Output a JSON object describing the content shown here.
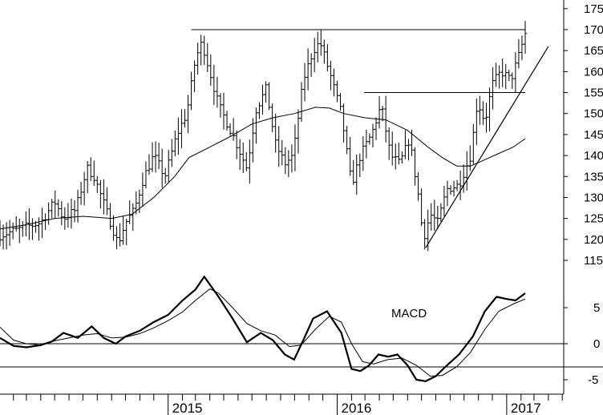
{
  "chart_data": [
    {
      "type": "ohlc",
      "panel": "price",
      "ylim": [
        110,
        178
      ],
      "yticks": [
        115,
        120,
        125,
        130,
        135,
        140,
        145,
        150,
        155,
        160,
        165,
        170,
        175
      ],
      "x_start": "2014-01-03",
      "x_end": "2017-02-10",
      "date_labels": [
        {
          "label": "2015",
          "date": "2015-01-01"
        },
        {
          "label": "2016",
          "date": "2016-01-01"
        },
        {
          "label": "2017",
          "date": "2017-01-01"
        }
      ],
      "moving_average": [
        [
          "2014-01-03",
          122.5
        ],
        [
          "2014-03-01",
          123.5
        ],
        [
          "2014-05-01",
          125.0
        ],
        [
          "2014-07-01",
          125.5
        ],
        [
          "2014-09-01",
          125.0
        ],
        [
          "2014-10-15",
          126.0
        ],
        [
          "2014-12-01",
          130.0
        ],
        [
          "2015-01-15",
          135.0
        ],
        [
          "2015-02-15",
          139.5
        ],
        [
          "2015-04-01",
          142.0
        ],
        [
          "2015-05-15",
          144.5
        ],
        [
          "2015-07-01",
          147.5
        ],
        [
          "2015-08-15",
          149.0
        ],
        [
          "2015-10-01",
          150.0
        ],
        [
          "2015-11-15",
          151.5
        ],
        [
          "2015-12-15",
          151.3
        ],
        [
          "2016-01-15",
          150.0
        ],
        [
          "2016-03-01",
          149.0
        ],
        [
          "2016-04-15",
          148.5
        ],
        [
          "2016-06-01",
          146.0
        ],
        [
          "2016-07-15",
          142.0
        ],
        [
          "2016-08-15",
          139.5
        ],
        [
          "2016-09-15",
          137.5
        ],
        [
          "2016-10-15",
          137.5
        ],
        [
          "2016-11-15",
          139.0
        ],
        [
          "2016-12-15",
          140.5
        ],
        [
          "2017-01-15",
          142.0
        ],
        [
          "2017-02-10",
          144.0
        ]
      ],
      "close_path": [
        [
          "2014-01-03",
          121.0
        ],
        [
          "2014-02-01",
          122.0
        ],
        [
          "2014-03-01",
          123.0
        ],
        [
          "2014-04-01",
          124.0
        ],
        [
          "2014-05-01",
          129.0
        ],
        [
          "2014-05-20",
          125.0
        ],
        [
          "2014-06-15",
          127.0
        ],
        [
          "2014-07-10",
          137.0
        ],
        [
          "2014-07-25",
          135.0
        ],
        [
          "2014-08-20",
          127.0
        ],
        [
          "2014-09-15",
          119.0
        ],
        [
          "2014-10-01",
          124.0
        ],
        [
          "2014-10-20",
          127.0
        ],
        [
          "2014-11-10",
          135.0
        ],
        [
          "2014-12-01",
          140.0
        ],
        [
          "2014-12-25",
          135.0
        ],
        [
          "2015-01-20",
          145.0
        ],
        [
          "2015-02-10",
          150.0
        ],
        [
          "2015-03-01",
          163.0
        ],
        [
          "2015-03-15",
          167.0
        ],
        [
          "2015-04-01",
          160.0
        ],
        [
          "2015-04-20",
          152.0
        ],
        [
          "2015-05-20",
          145.0
        ],
        [
          "2015-06-20",
          137.0
        ],
        [
          "2015-07-10",
          151.0
        ],
        [
          "2015-08-01",
          156.0
        ],
        [
          "2015-08-20",
          143.0
        ],
        [
          "2015-09-10",
          138.0
        ],
        [
          "2015-09-28",
          140.0
        ],
        [
          "2015-10-20",
          158.0
        ],
        [
          "2015-11-10",
          165.0
        ],
        [
          "2015-11-25",
          167.0
        ],
        [
          "2015-12-15",
          160.0
        ],
        [
          "2016-01-10",
          150.0
        ],
        [
          "2016-02-01",
          133.0
        ],
        [
          "2016-02-20",
          140.0
        ],
        [
          "2016-03-15",
          145.0
        ],
        [
          "2016-04-05",
          152.0
        ],
        [
          "2016-04-25",
          140.0
        ],
        [
          "2016-05-15",
          138.0
        ],
        [
          "2016-06-05",
          144.0
        ],
        [
          "2016-06-25",
          130.0
        ],
        [
          "2016-07-05",
          120.0
        ],
        [
          "2016-07-20",
          126.0
        ],
        [
          "2016-08-05",
          124.0
        ],
        [
          "2016-08-25",
          132.0
        ],
        [
          "2016-09-20",
          133.0
        ],
        [
          "2016-10-15",
          140.0
        ],
        [
          "2016-10-30",
          153.0
        ],
        [
          "2016-11-15",
          148.0
        ],
        [
          "2016-12-01",
          157.0
        ],
        [
          "2016-12-20",
          160.0
        ],
        [
          "2017-01-10",
          158.0
        ],
        [
          "2017-01-25",
          163.0
        ],
        [
          "2017-02-10",
          169.0
        ]
      ],
      "horizontal_lines": [
        {
          "y": 170,
          "x0": "2015-02-20",
          "x1": "2017-02-10"
        },
        {
          "y": 155,
          "x0": "2016-02-28",
          "x1": "2017-02-10"
        }
      ],
      "trendline": {
        "x0": "2016-07-10",
        "y0": 118.0,
        "x1": "2017-04-01",
        "y1": 166.0
      }
    },
    {
      "type": "line",
      "panel": "indicator",
      "title": "MACD",
      "ylim": [
        -7,
        12
      ],
      "yticks": [
        -5,
        0,
        5
      ],
      "series": [
        {
          "role": "macd",
          "points": [
            [
              "2014-01-03",
              0.8
            ],
            [
              "2014-02-01",
              -0.3
            ],
            [
              "2014-03-01",
              -0.5
            ],
            [
              "2014-04-01",
              -0.2
            ],
            [
              "2014-04-25",
              0.3
            ],
            [
              "2014-05-20",
              1.5
            ],
            [
              "2014-06-20",
              0.8
            ],
            [
              "2014-07-20",
              2.4
            ],
            [
              "2014-08-15",
              0.8
            ],
            [
              "2014-09-10",
              0.0
            ],
            [
              "2014-10-01",
              1.0
            ],
            [
              "2014-11-01",
              1.8
            ],
            [
              "2014-12-01",
              3.0
            ],
            [
              "2015-01-01",
              4.0
            ],
            [
              "2015-02-01",
              6.0
            ],
            [
              "2015-03-01",
              7.5
            ],
            [
              "2015-03-20",
              9.3
            ],
            [
              "2015-04-20",
              6.5
            ],
            [
              "2015-05-20",
              3.5
            ],
            [
              "2015-06-20",
              0.2
            ],
            [
              "2015-07-20",
              1.5
            ],
            [
              "2015-08-15",
              0.5
            ],
            [
              "2015-09-10",
              -1.5
            ],
            [
              "2015-09-30",
              -2.2
            ],
            [
              "2015-10-20",
              0.5
            ],
            [
              "2015-11-10",
              3.5
            ],
            [
              "2015-12-10",
              4.5
            ],
            [
              "2016-01-10",
              1.5
            ],
            [
              "2016-02-01",
              -3.5
            ],
            [
              "2016-02-20",
              -3.8
            ],
            [
              "2016-03-10",
              -3.0
            ],
            [
              "2016-03-30",
              -1.5
            ],
            [
              "2016-04-20",
              -1.8
            ],
            [
              "2016-05-10",
              -1.5
            ],
            [
              "2016-06-01",
              -3.0
            ],
            [
              "2016-06-20",
              -5.0
            ],
            [
              "2016-07-10",
              -5.2
            ],
            [
              "2016-08-01",
              -4.5
            ],
            [
              "2016-08-25",
              -3.0
            ],
            [
              "2016-09-20",
              -1.5
            ],
            [
              "2016-10-20",
              1.0
            ],
            [
              "2016-11-15",
              4.5
            ],
            [
              "2016-12-10",
              6.5
            ],
            [
              "2017-01-01",
              6.2
            ],
            [
              "2017-01-20",
              6.0
            ],
            [
              "2017-02-10",
              7.0
            ]
          ]
        },
        {
          "role": "signal",
          "points": [
            [
              "2014-01-03",
              2.3
            ],
            [
              "2014-02-01",
              0.5
            ],
            [
              "2014-03-01",
              0.0
            ],
            [
              "2014-04-01",
              -0.2
            ],
            [
              "2014-05-01",
              0.4
            ],
            [
              "2014-06-01",
              0.8
            ],
            [
              "2014-07-01",
              1.2
            ],
            [
              "2014-08-01",
              1.4
            ],
            [
              "2014-09-01",
              0.8
            ],
            [
              "2014-10-01",
              0.9
            ],
            [
              "2014-11-01",
              1.4
            ],
            [
              "2014-12-01",
              2.2
            ],
            [
              "2015-01-01",
              3.2
            ],
            [
              "2015-02-01",
              4.4
            ],
            [
              "2015-03-01",
              6.0
            ],
            [
              "2015-04-01",
              7.6
            ],
            [
              "2015-04-20",
              7.0
            ],
            [
              "2015-05-20",
              5.0
            ],
            [
              "2015-06-20",
              2.8
            ],
            [
              "2015-07-20",
              1.8
            ],
            [
              "2015-08-20",
              1.2
            ],
            [
              "2015-09-20",
              -0.4
            ],
            [
              "2015-10-15",
              -0.2
            ],
            [
              "2015-11-15",
              2.0
            ],
            [
              "2015-12-15",
              3.8
            ],
            [
              "2016-01-10",
              3.0
            ],
            [
              "2016-02-01",
              0.0
            ],
            [
              "2016-02-25",
              -2.5
            ],
            [
              "2016-03-20",
              -2.8
            ],
            [
              "2016-04-20",
              -2.2
            ],
            [
              "2016-05-20",
              -2.0
            ],
            [
              "2016-06-20",
              -3.0
            ],
            [
              "2016-07-20",
              -4.5
            ],
            [
              "2016-08-15",
              -4.4
            ],
            [
              "2016-09-15",
              -3.2
            ],
            [
              "2016-10-15",
              -1.2
            ],
            [
              "2016-11-15",
              2.0
            ],
            [
              "2016-12-15",
              4.5
            ],
            [
              "2017-01-15",
              5.5
            ],
            [
              "2017-02-10",
              6.2
            ]
          ]
        }
      ]
    }
  ]
}
